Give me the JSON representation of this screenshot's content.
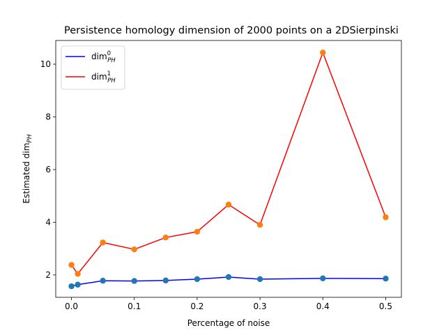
{
  "chart_data": {
    "type": "line",
    "title": "Persistence homology dimension of 2000 points on a 2DSierpinski",
    "xlabel": "Percentage of noise",
    "ylabel": "Estimated dim_PH",
    "xlim": [
      -0.025,
      0.525
    ],
    "ylim": [
      1.15,
      10.9
    ],
    "xticks": [
      0.0,
      0.1,
      0.2,
      0.3,
      0.4,
      0.5
    ],
    "xtick_labels": [
      "0.0",
      "0.1",
      "0.2",
      "0.3",
      "0.4",
      "0.5"
    ],
    "yticks": [
      2,
      4,
      6,
      8,
      10
    ],
    "ytick_labels": [
      "2",
      "4",
      "6",
      "8",
      "10"
    ],
    "x": [
      0.0,
      0.01,
      0.05,
      0.1,
      0.15,
      0.2,
      0.25,
      0.3,
      0.4,
      0.5
    ],
    "series": [
      {
        "name": "dim_PH^0",
        "line_color": "#0000ff",
        "marker_color": "#1f77b4",
        "values": [
          1.57,
          1.63,
          1.78,
          1.77,
          1.79,
          1.84,
          1.92,
          1.84,
          1.87,
          1.86
        ]
      },
      {
        "name": "dim_PH^1",
        "line_color": "#ff0000",
        "marker_color": "#ff7f0e",
        "values": [
          2.38,
          2.04,
          3.23,
          2.97,
          3.42,
          3.64,
          4.67,
          3.9,
          10.44,
          4.19
        ]
      }
    ],
    "legend": {
      "position": "top-left",
      "entries": [
        {
          "base": "dim",
          "sup": "0",
          "sub": "PH"
        },
        {
          "base": "dim",
          "sup": "1",
          "sub": "PH"
        }
      ]
    },
    "grid": false
  }
}
